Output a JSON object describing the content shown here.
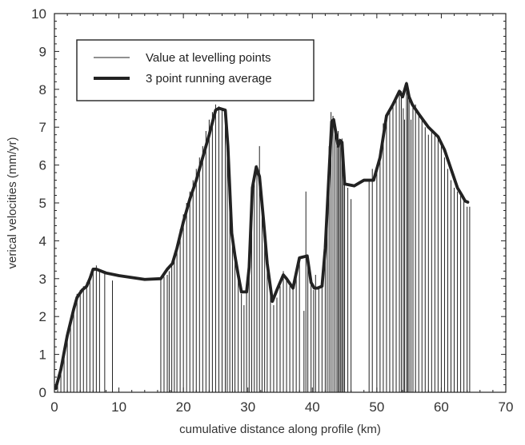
{
  "chart_data": {
    "type": "line",
    "title": "",
    "xlabel": "cumulative distance along profile (km)",
    "ylabel": "verical velocities (mm/yr)",
    "xlim": [
      0,
      70
    ],
    "ylim": [
      0,
      10
    ],
    "xticks": [
      0,
      10,
      20,
      30,
      40,
      50,
      60,
      70
    ],
    "yticks": [
      0,
      1,
      2,
      3,
      4,
      5,
      6,
      7,
      8,
      9,
      10
    ],
    "grid": false,
    "legend_position": "top-left",
    "series": [
      {
        "name": "Value at levelling points",
        "style": "vertical-lines",
        "color": "#222222",
        "points": [
          [
            0.5,
            0.2
          ],
          [
            1.0,
            0.7
          ],
          [
            1.5,
            1.1
          ],
          [
            2.0,
            1.6
          ],
          [
            2.5,
            1.9
          ],
          [
            3.0,
            2.3
          ],
          [
            3.5,
            2.6
          ],
          [
            4.0,
            2.7
          ],
          [
            4.5,
            2.8
          ],
          [
            5.0,
            2.9
          ],
          [
            5.5,
            3.0
          ],
          [
            6.0,
            3.2
          ],
          [
            6.5,
            3.35
          ],
          [
            7.0,
            3.2
          ],
          [
            7.8,
            3.2
          ],
          [
            9.0,
            2.95
          ],
          [
            16.5,
            3.0
          ],
          [
            17.0,
            3.05
          ],
          [
            17.5,
            3.1
          ],
          [
            17.8,
            3.2
          ],
          [
            18.2,
            3.4
          ],
          [
            18.6,
            3.6
          ],
          [
            19.0,
            3.9
          ],
          [
            19.5,
            4.3
          ],
          [
            20.0,
            4.7
          ],
          [
            20.5,
            5.0
          ],
          [
            21.0,
            5.3
          ],
          [
            21.5,
            5.6
          ],
          [
            22.0,
            5.9
          ],
          [
            22.5,
            6.2
          ],
          [
            23.0,
            6.5
          ],
          [
            23.5,
            6.9
          ],
          [
            24.0,
            7.2
          ],
          [
            24.5,
            7.4
          ],
          [
            25.0,
            7.6
          ],
          [
            25.5,
            7.55
          ],
          [
            26.0,
            7.5
          ],
          [
            26.5,
            7.45
          ],
          [
            26.8,
            6.3
          ],
          [
            27.2,
            5.0
          ],
          [
            27.6,
            4.2
          ],
          [
            28.0,
            3.7
          ],
          [
            28.5,
            3.1
          ],
          [
            29.0,
            2.6
          ],
          [
            29.4,
            2.3
          ],
          [
            29.8,
            2.9
          ],
          [
            30.2,
            3.6
          ],
          [
            30.6,
            4.5
          ],
          [
            31.0,
            5.5
          ],
          [
            31.4,
            6.0
          ],
          [
            31.8,
            6.5
          ],
          [
            32.2,
            5.2
          ],
          [
            32.6,
            4.0
          ],
          [
            33.0,
            3.2
          ],
          [
            33.5,
            2.7
          ],
          [
            34.0,
            2.3
          ],
          [
            34.5,
            2.5
          ],
          [
            35.0,
            2.8
          ],
          [
            35.5,
            3.2
          ],
          [
            36.0,
            3.05
          ],
          [
            36.5,
            2.8
          ],
          [
            37.0,
            2.75
          ],
          [
            37.5,
            3.1
          ],
          [
            38.0,
            3.5
          ],
          [
            38.7,
            2.15
          ],
          [
            39.0,
            5.3
          ],
          [
            39.3,
            3.55
          ],
          [
            39.8,
            3.0
          ],
          [
            40.2,
            2.7
          ],
          [
            40.5,
            3.1
          ],
          [
            41.0,
            2.8
          ],
          [
            41.5,
            2.8
          ],
          [
            42.0,
            3.8
          ],
          [
            42.3,
            5.0
          ],
          [
            42.6,
            6.5
          ],
          [
            42.9,
            7.4
          ],
          [
            43.2,
            7.3
          ],
          [
            43.5,
            7.0
          ],
          [
            43.8,
            6.5
          ],
          [
            44.0,
            6.9
          ],
          [
            44.2,
            6.7
          ],
          [
            44.4,
            6.6
          ],
          [
            44.6,
            6.7
          ],
          [
            44.8,
            6.5
          ],
          [
            45.0,
            5.7
          ],
          [
            45.5,
            5.4
          ],
          [
            46.0,
            5.1
          ],
          [
            48.8,
            5.6
          ],
          [
            49.3,
            5.9
          ],
          [
            50.0,
            6.0
          ],
          [
            50.5,
            6.4
          ],
          [
            51.0,
            7.1
          ],
          [
            51.5,
            7.3
          ],
          [
            52.0,
            7.5
          ],
          [
            52.5,
            7.6
          ],
          [
            53.0,
            7.8
          ],
          [
            53.5,
            7.9
          ],
          [
            53.8,
            7.95
          ],
          [
            54.1,
            7.5
          ],
          [
            54.3,
            7.2
          ],
          [
            54.6,
            8.2
          ],
          [
            54.8,
            8.1
          ],
          [
            55.0,
            7.8
          ],
          [
            55.3,
            7.2
          ],
          [
            55.6,
            7.6
          ],
          [
            56.0,
            7.6
          ],
          [
            56.5,
            7.4
          ],
          [
            57.0,
            7.2
          ],
          [
            57.5,
            7.0
          ],
          [
            58.0,
            6.8
          ],
          [
            58.5,
            6.9
          ],
          [
            59.0,
            6.85
          ],
          [
            59.5,
            6.7
          ],
          [
            60.0,
            6.5
          ],
          [
            60.5,
            6.2
          ],
          [
            61.0,
            5.9
          ],
          [
            61.5,
            5.6
          ],
          [
            62.0,
            5.4
          ],
          [
            62.5,
            5.3
          ],
          [
            63.0,
            5.2
          ],
          [
            63.5,
            5.1
          ],
          [
            64.0,
            4.9
          ],
          [
            64.4,
            4.9
          ]
        ]
      },
      {
        "name": "3 point running average",
        "style": "thick-line",
        "color": "#222222",
        "points": [
          [
            0.2,
            0.1
          ],
          [
            1.0,
            0.6
          ],
          [
            2.0,
            1.5
          ],
          [
            3.0,
            2.2
          ],
          [
            3.5,
            2.5
          ],
          [
            4.3,
            2.7
          ],
          [
            5.0,
            2.8
          ],
          [
            5.5,
            3.0
          ],
          [
            6.0,
            3.25
          ],
          [
            6.5,
            3.25
          ],
          [
            8.0,
            3.15
          ],
          [
            10.0,
            3.08
          ],
          [
            14.0,
            2.98
          ],
          [
            16.5,
            3.0
          ],
          [
            17.5,
            3.25
          ],
          [
            18.3,
            3.4
          ],
          [
            19.0,
            3.8
          ],
          [
            20.0,
            4.5
          ],
          [
            21.0,
            5.1
          ],
          [
            22.0,
            5.6
          ],
          [
            23.0,
            6.2
          ],
          [
            24.0,
            6.8
          ],
          [
            25.0,
            7.45
          ],
          [
            25.5,
            7.5
          ],
          [
            26.5,
            7.45
          ],
          [
            26.9,
            6.5
          ],
          [
            27.5,
            4.2
          ],
          [
            28.0,
            3.6
          ],
          [
            28.5,
            3.1
          ],
          [
            29.0,
            2.65
          ],
          [
            29.8,
            2.65
          ],
          [
            30.2,
            3.3
          ],
          [
            30.7,
            5.4
          ],
          [
            31.3,
            5.95
          ],
          [
            31.8,
            5.7
          ],
          [
            32.4,
            4.6
          ],
          [
            33.0,
            3.4
          ],
          [
            33.8,
            2.4
          ],
          [
            34.5,
            2.7
          ],
          [
            35.5,
            3.1
          ],
          [
            36.0,
            3.0
          ],
          [
            37.0,
            2.75
          ],
          [
            38.0,
            3.55
          ],
          [
            39.2,
            3.6
          ],
          [
            39.8,
            2.9
          ],
          [
            40.3,
            2.75
          ],
          [
            40.8,
            2.75
          ],
          [
            41.5,
            2.8
          ],
          [
            42.0,
            3.8
          ],
          [
            42.5,
            5.5
          ],
          [
            43.0,
            7.15
          ],
          [
            43.3,
            7.2
          ],
          [
            43.6,
            6.9
          ],
          [
            44.0,
            6.5
          ],
          [
            44.3,
            6.65
          ],
          [
            44.6,
            6.6
          ],
          [
            45.0,
            5.5
          ],
          [
            46.5,
            5.45
          ],
          [
            48.0,
            5.6
          ],
          [
            49.5,
            5.6
          ],
          [
            50.5,
            6.2
          ],
          [
            51.5,
            7.3
          ],
          [
            52.5,
            7.6
          ],
          [
            53.5,
            7.95
          ],
          [
            54.0,
            7.8
          ],
          [
            54.6,
            8.15
          ],
          [
            55.0,
            7.8
          ],
          [
            55.5,
            7.6
          ],
          [
            56.5,
            7.35
          ],
          [
            58.0,
            7.0
          ],
          [
            59.5,
            6.75
          ],
          [
            60.5,
            6.4
          ],
          [
            61.5,
            5.9
          ],
          [
            62.5,
            5.4
          ],
          [
            63.2,
            5.2
          ],
          [
            63.7,
            5.05
          ],
          [
            64.1,
            5.02
          ]
        ]
      }
    ]
  }
}
